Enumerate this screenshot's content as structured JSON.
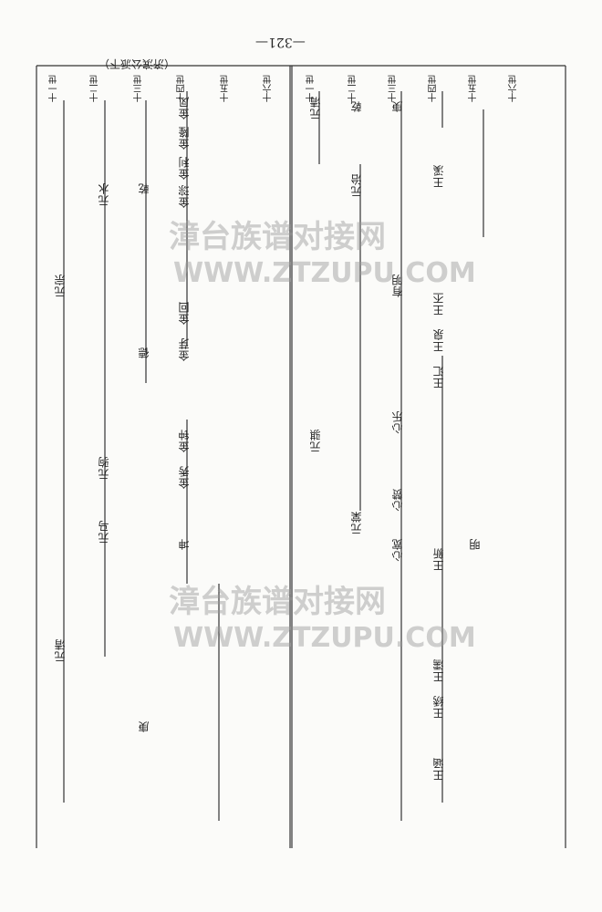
{
  "page_number": "—321—",
  "section_note": "（济滨公派下）",
  "generations_left": [
    "十一世",
    "十二世",
    "十三世",
    "十四世",
    "十五世",
    "十六世"
  ],
  "generations_right": [
    "十一世",
    "十二世",
    "十三世",
    "十四世",
    "十五世",
    "十六世"
  ],
  "names_left": [
    "元宗",
    "元水",
    "元驹",
    "元马",
    "乾",
    "庚",
    "元清",
    "金凤",
    "金隆",
    "金利",
    "金琮",
    "金回",
    "金芽",
    "金钟",
    "金秀",
    "坤",
    "德"
  ],
  "names_right": [
    "元清",
    "乾",
    "庚",
    "元治",
    "元骐",
    "元棠",
    "心乐",
    "心赞",
    "心宽",
    "王绣",
    "王濡",
    "王涵",
    "王溪",
    "王汇",
    "王新",
    "王泉",
    "王丕",
    "有明",
    "明"
  ],
  "watermark": {
    "cn": "漳台族谱对接网",
    "url": "WWW.ZTZUPU.COM"
  }
}
